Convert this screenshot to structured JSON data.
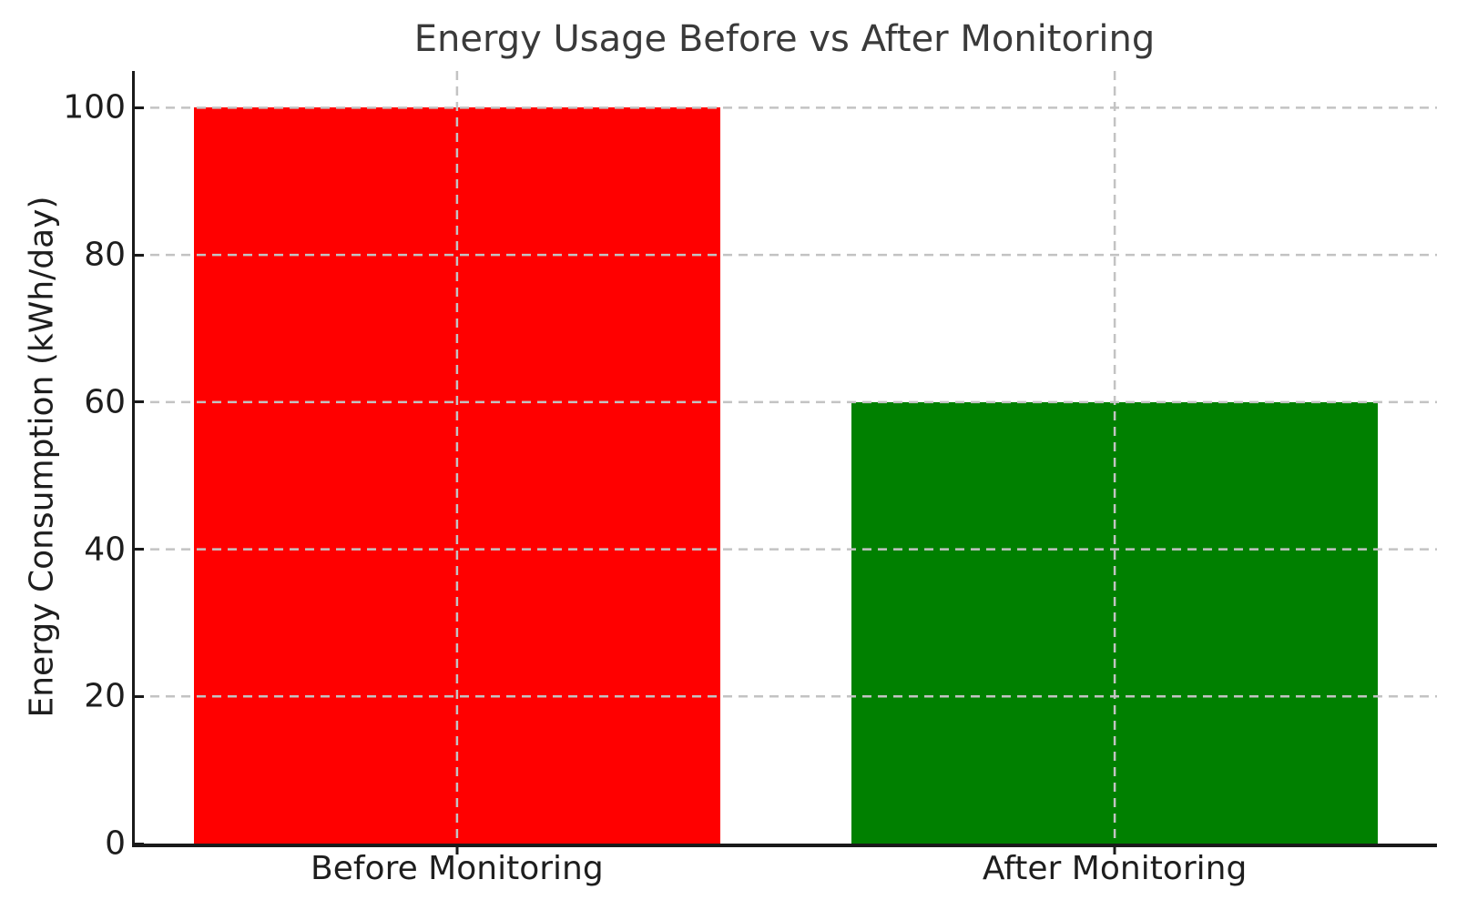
{
  "figure": {
    "background": "#ffffff"
  },
  "chart_data": {
    "type": "bar",
    "title": "Energy Usage Before vs After Monitoring",
    "xlabel": "",
    "ylabel": "Energy Consumption (kWh/day)",
    "categories": [
      "Before Monitoring",
      "After Monitoring"
    ],
    "values": [
      100,
      60
    ],
    "bar_colors": [
      "#ff0000",
      "#008000"
    ],
    "bar_width": 0.8,
    "yticks": [
      0,
      20,
      40,
      60,
      80,
      100
    ],
    "ylim": [
      0,
      105
    ],
    "xlim": [
      -0.49,
      1.49
    ],
    "grid": {
      "on": true,
      "axes": "both",
      "style": "dashed",
      "color": "#c3c3c3",
      "above_bars": true
    },
    "legend": "none",
    "colors": {
      "title_text": "#3a3a3a",
      "tick_text": "#1e1e1e",
      "axis": "#1a1a1a"
    }
  }
}
